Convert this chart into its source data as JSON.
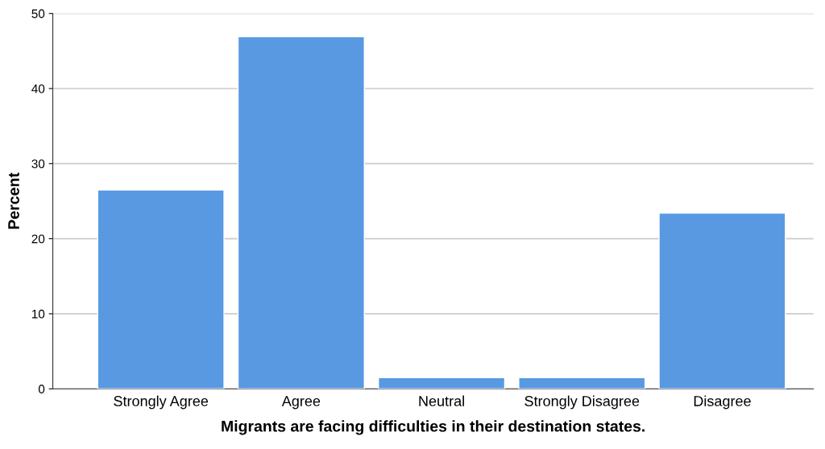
{
  "chart_data": {
    "type": "bar",
    "xlabel": "Migrants are facing difficulties in their destination states.",
    "ylabel": "Percent",
    "categories": [
      "Strongly Agree",
      "Agree",
      "Neutral",
      "Strongly Disagree",
      "Disagree"
    ],
    "values": [
      26.5,
      46.9,
      1.5,
      1.5,
      23.4
    ],
    "color": "#5899e2",
    "ylim": [
      0,
      50
    ],
    "yticks": [
      0,
      10,
      20,
      30,
      40,
      50
    ],
    "grid": "y"
  }
}
